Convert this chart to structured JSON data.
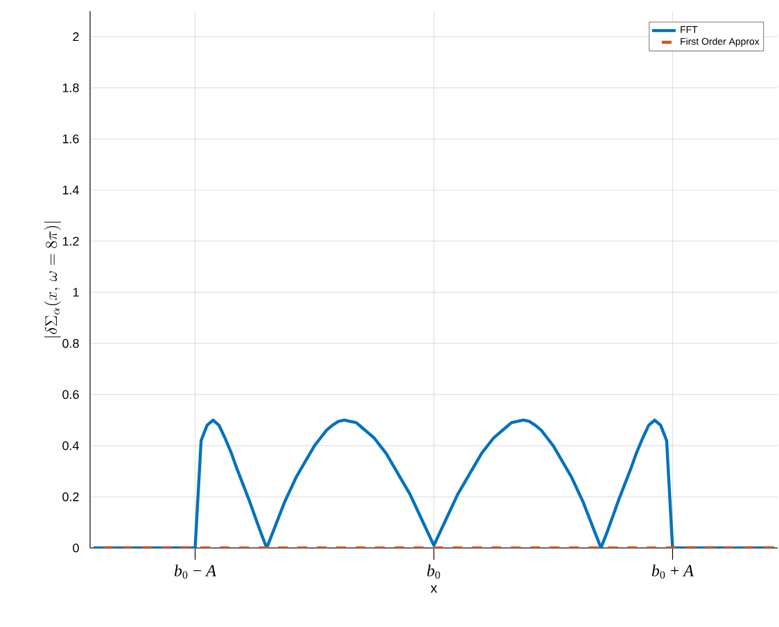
{
  "chart_data": {
    "type": "line",
    "xlabel": "x",
    "ylabel": "|\\delta\\Sigma_\\alpha(x,\\,\\omega=8\\pi)|",
    "categories": [
      null,
      null,
      null,
      null,
      null,
      null,
      null,
      null,
      null,
      null,
      null,
      null,
      null,
      null,
      null,
      null,
      null,
      "*b*$_{0}$ − *A*",
      null,
      null,
      null,
      null,
      null,
      null,
      null,
      null,
      null,
      null,
      null,
      null,
      null,
      null,
      null,
      null,
      null,
      null,
      null,
      null,
      null,
      null,
      null,
      null,
      null,
      null,
      null,
      null,
      null,
      null,
      null,
      null,
      null,
      null,
      null,
      null,
      null,
      null,
      null,
      "*b*$_{0}$",
      null,
      null,
      null,
      null,
      null,
      null,
      null,
      null,
      null,
      null,
      null,
      null,
      null,
      null,
      null,
      null,
      null,
      null,
      null,
      null,
      null,
      null,
      null,
      null,
      null,
      null,
      null,
      null,
      null,
      null,
      null,
      null,
      null,
      null,
      null,
      null,
      null,
      null,
      null,
      "*b*$_{0}$ + *A*",
      null,
      null,
      null,
      null,
      null,
      null,
      null,
      null,
      null,
      null,
      null,
      null,
      null,
      null,
      null,
      null,
      null
    ],
    "ylim": [
      0,
      2.1
    ],
    "yticks": [
      0,
      0.2,
      0.4,
      0.6,
      0.8,
      1,
      1.2,
      1.4,
      1.6,
      1.8,
      2
    ],
    "grid": true,
    "legend": "top right",
    "series": [
      {
        "name": "FFT",
        "color": "#0072bd",
        "line_style": "solid",
        "values": [
          0,
          0,
          0,
          0,
          0,
          0,
          0,
          0,
          0,
          0,
          0,
          0,
          0,
          0,
          0,
          0,
          0,
          0,
          0.42,
          0.48,
          0.5,
          0.48,
          0.43,
          0.375,
          0.31,
          0.25,
          0.19,
          0.125,
          0.06,
          0,
          0.06,
          0.12,
          0.18,
          0.23,
          0.28,
          0.32,
          0.36,
          0.4,
          0.43,
          0.46,
          0.48,
          0.495,
          0.5,
          0.495,
          0.49,
          0.47,
          0.45,
          0.43,
          0.4,
          0.37,
          0.33,
          0.29,
          0.25,
          0.21,
          0.16,
          0.11,
          0.06,
          0.01,
          0.06,
          0.11,
          0.16,
          0.21,
          0.25,
          0.29,
          0.33,
          0.37,
          0.4,
          0.43,
          0.45,
          0.47,
          0.49,
          0.495,
          0.5,
          0.495,
          0.48,
          0.46,
          0.43,
          0.4,
          0.36,
          0.32,
          0.28,
          0.23,
          0.18,
          0.12,
          0.06,
          0,
          0.06,
          0.125,
          0.19,
          0.25,
          0.31,
          0.375,
          0.43,
          0.48,
          0.5,
          0.48,
          0.42,
          0,
          0,
          0,
          0,
          0,
          0,
          0,
          0,
          0,
          0,
          0,
          0,
          0,
          0,
          0,
          0,
          0,
          0
        ]
      },
      {
        "name": "First Order Approx",
        "color": "#d95319",
        "line_style": "dashed",
        "values": [
          0,
          0,
          0,
          0,
          0,
          0,
          0,
          0,
          0,
          0,
          0,
          0,
          0,
          0,
          0,
          0,
          0,
          0,
          0,
          0,
          0,
          0,
          0,
          0,
          0,
          0,
          0,
          0,
          0,
          0,
          0,
          0,
          0,
          0,
          0,
          0,
          0,
          0,
          0,
          0,
          0,
          0,
          0,
          0,
          0,
          0,
          0,
          0,
          0,
          0,
          0,
          0,
          0,
          0,
          0,
          0,
          0,
          0,
          0,
          0,
          0,
          0,
          0,
          0,
          0,
          0,
          0,
          0,
          0,
          0,
          0,
          0,
          0,
          0,
          0,
          0,
          0,
          0,
          0,
          0,
          0,
          0,
          0,
          0,
          0,
          0,
          0,
          0,
          0,
          0,
          0,
          0,
          0,
          0,
          0,
          0,
          0,
          0,
          0,
          0,
          0,
          0,
          0,
          0,
          0,
          0,
          0,
          0,
          0,
          0,
          0,
          0,
          0,
          0,
          0
        ]
      }
    ]
  }
}
